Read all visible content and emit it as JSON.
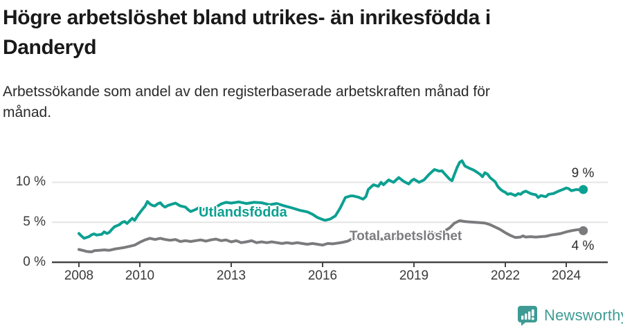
{
  "header": {
    "title_line1": "Högre arbetslöshet bland utrikes- än inrikesfödda i",
    "title_line2": "Danderyd",
    "subtitle_line1": "Arbetssökande som andel av den registerbaserade arbetskraften månad för",
    "subtitle_line2": "månad."
  },
  "footer": {
    "brand": "Newsworthy",
    "brand_color": "#3E9B94",
    "logo_icon": "speech-bubble-bar-chart-exclamation"
  },
  "colors": {
    "utlandsfodda_line": "#0CA091",
    "total_line": "#7b7b7e",
    "gridline": "#E4E4E4",
    "axis": "#454545"
  },
  "chart_data": {
    "type": "line",
    "title": "Högre arbetslöshet bland utrikes- än inrikesfödda i Danderyd",
    "subtitle": "Arbetssökande som andel av den registerbaserade arbetskraften månad för månad.",
    "xlabel": "",
    "ylabel": "",
    "grid": "horizontal",
    "legend_position": "inline-labels",
    "xlim": [
      2007.1,
      2025.4
    ],
    "ylim": [
      0,
      13.5
    ],
    "x_ticks": [
      {
        "label": "2008",
        "year": 2008
      },
      {
        "label": "2010",
        "year": 2010
      },
      {
        "label": "2013",
        "year": 2013
      },
      {
        "label": "2016",
        "year": 2016
      },
      {
        "label": "2019",
        "year": 2019
      },
      {
        "label": "2022",
        "year": 2022
      },
      {
        "label": "2024",
        "year": 2024
      }
    ],
    "y_ticks": [
      {
        "label": "10 %",
        "value": 10
      },
      {
        "label": "5 %",
        "value": 5
      },
      {
        "label": "0 %",
        "value": 0
      }
    ],
    "series": [
      {
        "name": "Utlandsfödda",
        "color": "#0CA091",
        "end_label": "9 %",
        "end_value": 9,
        "points": [
          [
            2008.0,
            3.6
          ],
          [
            2008.08,
            3.3
          ],
          [
            2008.17,
            3.0
          ],
          [
            2008.33,
            3.2
          ],
          [
            2008.42,
            3.45
          ],
          [
            2008.5,
            3.55
          ],
          [
            2008.58,
            3.4
          ],
          [
            2008.75,
            3.5
          ],
          [
            2008.83,
            3.8
          ],
          [
            2008.92,
            3.6
          ],
          [
            2009.0,
            3.75
          ],
          [
            2009.08,
            4.1
          ],
          [
            2009.17,
            4.45
          ],
          [
            2009.33,
            4.7
          ],
          [
            2009.42,
            5.0
          ],
          [
            2009.5,
            5.1
          ],
          [
            2009.58,
            4.85
          ],
          [
            2009.67,
            5.2
          ],
          [
            2009.75,
            5.5
          ],
          [
            2009.83,
            5.25
          ],
          [
            2009.92,
            5.8
          ],
          [
            2010.0,
            6.2
          ],
          [
            2010.08,
            6.6
          ],
          [
            2010.17,
            7.0
          ],
          [
            2010.25,
            7.6
          ],
          [
            2010.33,
            7.3
          ],
          [
            2010.42,
            7.1
          ],
          [
            2010.5,
            7.05
          ],
          [
            2010.58,
            7.3
          ],
          [
            2010.67,
            7.45
          ],
          [
            2010.75,
            7.1
          ],
          [
            2010.83,
            6.9
          ],
          [
            2010.92,
            7.1
          ],
          [
            2011.0,
            7.2
          ],
          [
            2011.17,
            7.4
          ],
          [
            2011.33,
            7.05
          ],
          [
            2011.5,
            6.9
          ],
          [
            2011.58,
            6.6
          ],
          [
            2011.67,
            6.35
          ],
          [
            2011.83,
            6.6
          ],
          [
            2011.92,
            6.8
          ],
          [
            2012.0,
            6.45
          ],
          [
            2012.17,
            6.75
          ],
          [
            2012.33,
            6.25
          ],
          [
            2012.5,
            6.9
          ],
          [
            2012.67,
            7.3
          ],
          [
            2012.83,
            7.5
          ],
          [
            2013.0,
            7.4
          ],
          [
            2013.25,
            7.55
          ],
          [
            2013.5,
            7.35
          ],
          [
            2013.75,
            7.5
          ],
          [
            2014.0,
            7.45
          ],
          [
            2014.25,
            7.2
          ],
          [
            2014.5,
            7.35
          ],
          [
            2014.75,
            7.05
          ],
          [
            2015.0,
            6.8
          ],
          [
            2015.25,
            6.5
          ],
          [
            2015.5,
            6.3
          ],
          [
            2015.67,
            6.0
          ],
          [
            2015.83,
            5.6
          ],
          [
            2016.0,
            5.35
          ],
          [
            2016.08,
            5.25
          ],
          [
            2016.25,
            5.4
          ],
          [
            2016.42,
            5.8
          ],
          [
            2016.58,
            6.8
          ],
          [
            2016.75,
            8.1
          ],
          [
            2016.92,
            8.3
          ],
          [
            2017.0,
            8.3
          ],
          [
            2017.17,
            8.15
          ],
          [
            2017.33,
            7.9
          ],
          [
            2017.42,
            8.2
          ],
          [
            2017.5,
            9.1
          ],
          [
            2017.67,
            9.7
          ],
          [
            2017.83,
            9.5
          ],
          [
            2017.92,
            10.0
          ],
          [
            2018.0,
            9.7
          ],
          [
            2018.17,
            10.3
          ],
          [
            2018.33,
            10.0
          ],
          [
            2018.5,
            10.6
          ],
          [
            2018.67,
            10.1
          ],
          [
            2018.83,
            9.8
          ],
          [
            2018.92,
            10.2
          ],
          [
            2019.0,
            10.4
          ],
          [
            2019.17,
            10.0
          ],
          [
            2019.33,
            10.3
          ],
          [
            2019.5,
            11.0
          ],
          [
            2019.67,
            11.6
          ],
          [
            2019.83,
            11.4
          ],
          [
            2019.92,
            11.45
          ],
          [
            2020.0,
            11.1
          ],
          [
            2020.17,
            10.4
          ],
          [
            2020.25,
            10.2
          ],
          [
            2020.33,
            11.0
          ],
          [
            2020.42,
            11.9
          ],
          [
            2020.5,
            12.5
          ],
          [
            2020.58,
            12.7
          ],
          [
            2020.67,
            12.05
          ],
          [
            2020.83,
            11.75
          ],
          [
            2020.92,
            11.6
          ],
          [
            2021.0,
            11.45
          ],
          [
            2021.17,
            11.0
          ],
          [
            2021.25,
            10.7
          ],
          [
            2021.33,
            11.2
          ],
          [
            2021.42,
            11.0
          ],
          [
            2021.5,
            10.6
          ],
          [
            2021.67,
            10.05
          ],
          [
            2021.75,
            9.5
          ],
          [
            2021.83,
            9.15
          ],
          [
            2021.92,
            8.9
          ],
          [
            2022.0,
            8.75
          ],
          [
            2022.08,
            8.5
          ],
          [
            2022.17,
            8.6
          ],
          [
            2022.33,
            8.35
          ],
          [
            2022.42,
            8.6
          ],
          [
            2022.5,
            8.5
          ],
          [
            2022.58,
            8.75
          ],
          [
            2022.67,
            8.9
          ],
          [
            2022.83,
            8.6
          ],
          [
            2022.92,
            8.5
          ],
          [
            2023.0,
            8.45
          ],
          [
            2023.08,
            8.1
          ],
          [
            2023.17,
            8.35
          ],
          [
            2023.33,
            8.2
          ],
          [
            2023.42,
            8.5
          ],
          [
            2023.58,
            8.6
          ],
          [
            2023.75,
            8.9
          ],
          [
            2023.92,
            9.15
          ],
          [
            2024.0,
            9.3
          ],
          [
            2024.08,
            9.2
          ],
          [
            2024.17,
            8.95
          ],
          [
            2024.33,
            9.1
          ],
          [
            2024.45,
            9.05
          ],
          [
            2024.56,
            9.1
          ]
        ]
      },
      {
        "name": "Total arbetslöshet",
        "color": "#7b7b7e",
        "end_label": "4 %",
        "end_value": 4,
        "points": [
          [
            2008.0,
            1.6
          ],
          [
            2008.17,
            1.45
          ],
          [
            2008.25,
            1.35
          ],
          [
            2008.42,
            1.3
          ],
          [
            2008.5,
            1.45
          ],
          [
            2008.67,
            1.5
          ],
          [
            2008.83,
            1.55
          ],
          [
            2009.0,
            1.5
          ],
          [
            2009.17,
            1.65
          ],
          [
            2009.33,
            1.75
          ],
          [
            2009.5,
            1.85
          ],
          [
            2009.67,
            2.0
          ],
          [
            2009.83,
            2.15
          ],
          [
            2010.0,
            2.5
          ],
          [
            2010.17,
            2.8
          ],
          [
            2010.33,
            3.0
          ],
          [
            2010.5,
            2.85
          ],
          [
            2010.67,
            3.0
          ],
          [
            2010.83,
            2.85
          ],
          [
            2011.0,
            2.75
          ],
          [
            2011.17,
            2.85
          ],
          [
            2011.33,
            2.6
          ],
          [
            2011.5,
            2.7
          ],
          [
            2011.67,
            2.6
          ],
          [
            2011.83,
            2.7
          ],
          [
            2012.0,
            2.8
          ],
          [
            2012.17,
            2.65
          ],
          [
            2012.33,
            2.8
          ],
          [
            2012.5,
            2.9
          ],
          [
            2012.67,
            2.7
          ],
          [
            2012.83,
            2.8
          ],
          [
            2013.0,
            2.55
          ],
          [
            2013.17,
            2.7
          ],
          [
            2013.33,
            2.45
          ],
          [
            2013.5,
            2.55
          ],
          [
            2013.67,
            2.7
          ],
          [
            2013.83,
            2.45
          ],
          [
            2014.0,
            2.55
          ],
          [
            2014.17,
            2.45
          ],
          [
            2014.33,
            2.55
          ],
          [
            2014.5,
            2.45
          ],
          [
            2014.67,
            2.35
          ],
          [
            2014.83,
            2.45
          ],
          [
            2015.0,
            2.35
          ],
          [
            2015.17,
            2.45
          ],
          [
            2015.33,
            2.35
          ],
          [
            2015.5,
            2.25
          ],
          [
            2015.67,
            2.35
          ],
          [
            2015.83,
            2.25
          ],
          [
            2016.0,
            2.15
          ],
          [
            2016.17,
            2.35
          ],
          [
            2016.33,
            2.3
          ],
          [
            2016.5,
            2.4
          ],
          [
            2016.67,
            2.5
          ],
          [
            2016.83,
            2.65
          ],
          [
            2017.0,
            3.0
          ],
          [
            2017.25,
            3.1
          ],
          [
            2017.5,
            3.0
          ],
          [
            2017.75,
            2.9
          ],
          [
            2018.0,
            2.9
          ],
          [
            2018.25,
            3.0
          ],
          [
            2018.5,
            2.95
          ],
          [
            2018.75,
            3.05
          ],
          [
            2019.0,
            3.1
          ],
          [
            2019.25,
            3.2
          ],
          [
            2019.5,
            3.35
          ],
          [
            2019.75,
            3.6
          ],
          [
            2020.0,
            3.9
          ],
          [
            2020.17,
            4.3
          ],
          [
            2020.33,
            4.9
          ],
          [
            2020.5,
            5.2
          ],
          [
            2020.67,
            5.1
          ],
          [
            2020.83,
            5.05
          ],
          [
            2021.0,
            5.0
          ],
          [
            2021.17,
            4.95
          ],
          [
            2021.33,
            4.9
          ],
          [
            2021.5,
            4.7
          ],
          [
            2021.67,
            4.4
          ],
          [
            2021.83,
            4.1
          ],
          [
            2022.0,
            3.7
          ],
          [
            2022.17,
            3.35
          ],
          [
            2022.33,
            3.1
          ],
          [
            2022.5,
            3.15
          ],
          [
            2022.58,
            3.3
          ],
          [
            2022.67,
            3.15
          ],
          [
            2022.83,
            3.2
          ],
          [
            2023.0,
            3.15
          ],
          [
            2023.17,
            3.2
          ],
          [
            2023.33,
            3.25
          ],
          [
            2023.5,
            3.4
          ],
          [
            2023.67,
            3.5
          ],
          [
            2023.83,
            3.6
          ],
          [
            2024.0,
            3.8
          ],
          [
            2024.17,
            3.95
          ],
          [
            2024.33,
            4.05
          ],
          [
            2024.45,
            4.1
          ],
          [
            2024.56,
            3.95
          ]
        ]
      }
    ]
  }
}
